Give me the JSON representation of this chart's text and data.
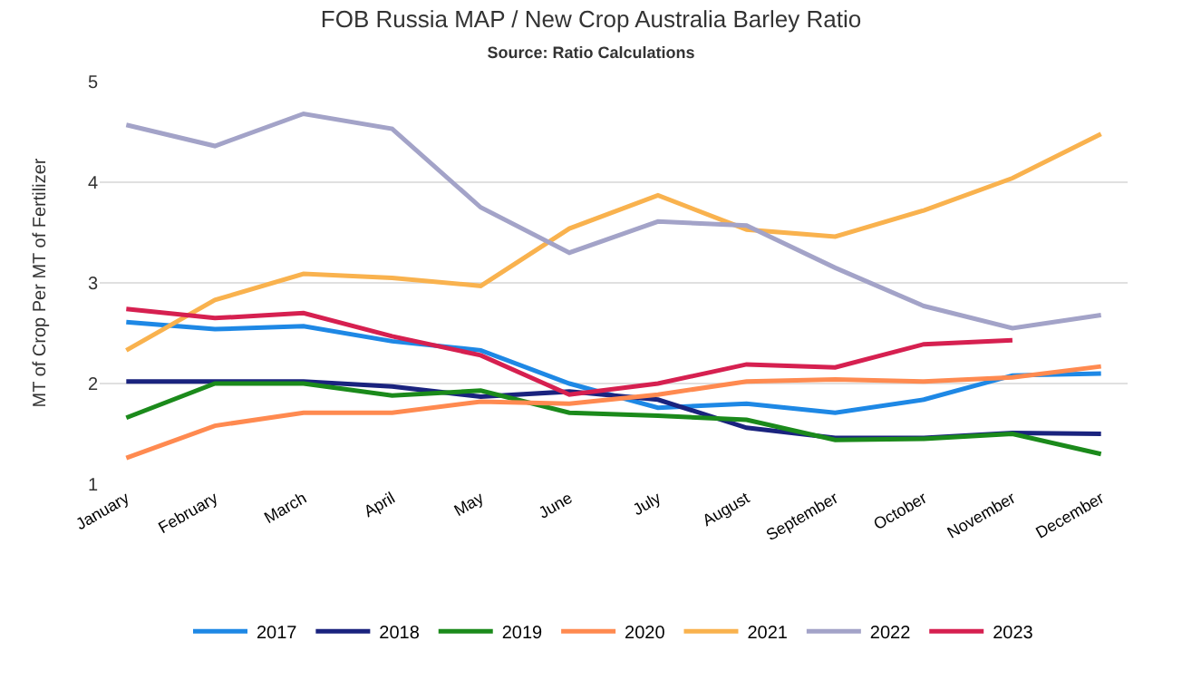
{
  "chart_data": {
    "type": "line",
    "title": "FOB Russia MAP / New Crop Australia Barley Ratio",
    "subtitle": "Source: Ratio Calculations",
    "ylabel": "MT of Crop Per MT of Fertilizer",
    "categories": [
      "January",
      "February",
      "March",
      "April",
      "May",
      "June",
      "July",
      "August",
      "September",
      "October",
      "November",
      "December"
    ],
    "series": [
      {
        "name": "2017",
        "color": "#1e88e5",
        "values": [
          2.61,
          2.54,
          2.57,
          2.42,
          2.33,
          2.0,
          1.76,
          1.8,
          1.71,
          1.84,
          2.08,
          2.1
        ]
      },
      {
        "name": "2018",
        "color": "#1a237e",
        "values": [
          2.02,
          2.02,
          2.02,
          1.97,
          1.87,
          1.92,
          1.84,
          1.56,
          1.46,
          1.46,
          1.51,
          1.5
        ]
      },
      {
        "name": "2019",
        "color": "#1b8a1b",
        "values": [
          1.66,
          2.0,
          2.0,
          1.88,
          1.93,
          1.71,
          1.68,
          1.64,
          1.44,
          1.45,
          1.5,
          1.3
        ]
      },
      {
        "name": "2020",
        "color": "#ff8a50",
        "values": [
          1.26,
          1.58,
          1.71,
          1.71,
          1.82,
          1.8,
          1.89,
          2.02,
          2.04,
          2.02,
          2.06,
          2.17
        ]
      },
      {
        "name": "2021",
        "color": "#f9b24e",
        "values": [
          2.33,
          2.83,
          3.09,
          3.05,
          2.97,
          3.54,
          3.87,
          3.53,
          3.46,
          3.72,
          4.04,
          4.48
        ]
      },
      {
        "name": "2022",
        "color": "#a3a3c8",
        "values": [
          4.57,
          4.36,
          4.68,
          4.53,
          3.75,
          3.3,
          3.61,
          3.57,
          3.15,
          2.77,
          2.55,
          2.68
        ]
      },
      {
        "name": "2023",
        "color": "#d62050",
        "values": [
          2.74,
          2.65,
          2.7,
          2.47,
          2.28,
          1.89,
          2.0,
          2.19,
          2.16,
          2.39,
          2.43,
          null
        ]
      }
    ],
    "ylim": [
      1,
      5
    ],
    "yticks": [
      1,
      2,
      3,
      4,
      5
    ],
    "grid": "y",
    "legend": "bottom",
    "marker": "none",
    "line_style": "solid"
  }
}
